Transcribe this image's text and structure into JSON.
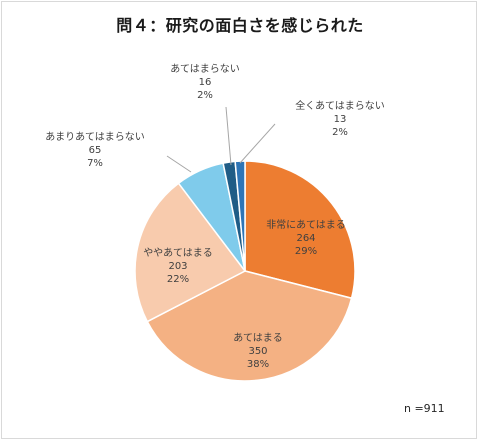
{
  "chart_data": {
    "type": "pie",
    "title": "問４：研究の面白さを感じられた",
    "slices": [
      {
        "label": "非常にあてはまる",
        "value": 264,
        "percent": "29%",
        "color": "#ED7D31"
      },
      {
        "label": "あてはまる",
        "value": 350,
        "percent": "38%",
        "color": "#F4B183"
      },
      {
        "label": "ややあてはまる",
        "value": 203,
        "percent": "22%",
        "color": "#F8CBAD"
      },
      {
        "label": "あまりあてはまらない",
        "value": 65,
        "percent": "7%",
        "color": "#7FCBEB"
      },
      {
        "label": "あてはまらない",
        "value": 16,
        "percent": "2%",
        "color": "#1F5C86"
      },
      {
        "label": "全くあてはまらない",
        "value": 13,
        "percent": "2%",
        "color": "#2E75B6"
      }
    ],
    "note": "n =911",
    "legend": "none"
  }
}
